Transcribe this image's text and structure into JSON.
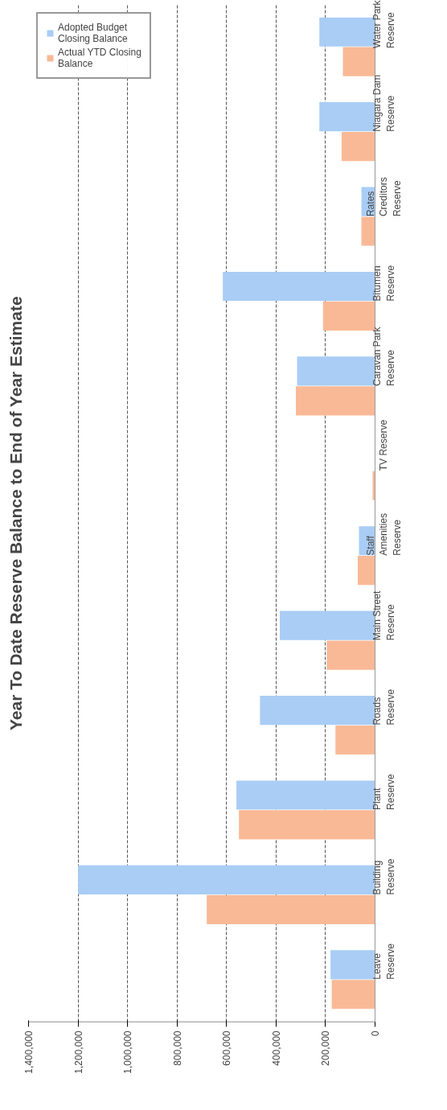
{
  "chart_data": {
    "type": "bar",
    "orientation": "horizontal",
    "title": "Year To Date Reserve Balance to End of Year Estimate",
    "categories": [
      "Water Park Reserve",
      "Niagara Dam Reserve",
      "Rates Creditors Reserve",
      "Bitumen Reserve",
      "Caravan Park Reserve",
      "TV Reserve",
      "Staff Amenities Reserve",
      "Main Street Reserve",
      "Roads Reserve",
      "Plant Reserve",
      "Building Reserve",
      "Leave Reserve"
    ],
    "series": [
      {
        "name": "Adopted Budget Closing Balance",
        "color": "#a9cdf5",
        "values": [
          225000,
          225000,
          55000,
          615000,
          315000,
          0,
          65000,
          385000,
          465000,
          560000,
          1200000,
          180000
        ]
      },
      {
        "name": "Actual YTD Closing Balance",
        "color": "#f9b996",
        "values": [
          130000,
          135000,
          55000,
          210000,
          320000,
          10000,
          70000,
          195000,
          160000,
          550000,
          680000,
          175000
        ]
      }
    ],
    "xlim": [
      1400000,
      0
    ],
    "xticks": [
      {
        "value": 1400000,
        "label": "1,400,000"
      },
      {
        "value": 1200000,
        "label": "1,200,000"
      },
      {
        "value": 1000000,
        "label": "1,000,000"
      },
      {
        "value": 800000,
        "label": "800,000"
      },
      {
        "value": 600000,
        "label": "600,000"
      },
      {
        "value": 400000,
        "label": "400,000"
      },
      {
        "value": 200000,
        "label": "200,000"
      },
      0
    ],
    "grid": "x",
    "legend": "top left"
  }
}
